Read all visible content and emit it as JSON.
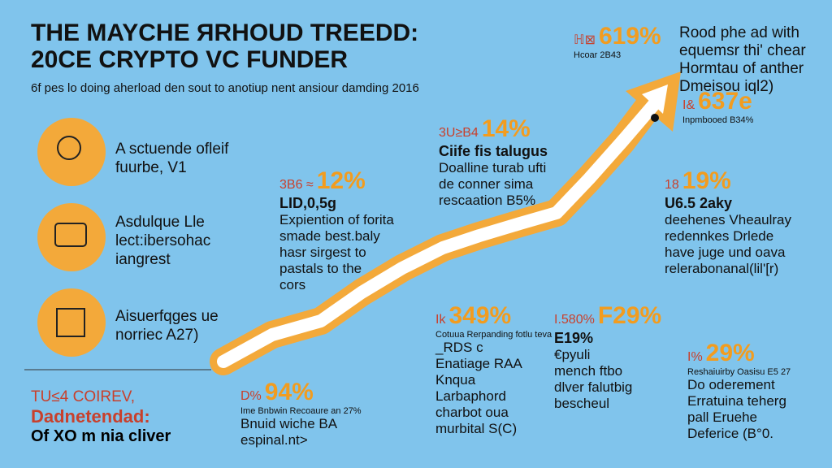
{
  "header": {
    "title": [
      "THE MAYCHE ЯRHOUD TREEDD:",
      "20CE CRYPTO VC FUNDER"
    ],
    "subtitle": "6f pes lo doing aherload den sout to anotiup nent ansiour damding 2016"
  },
  "features": [
    {
      "text": [
        "A sctuende ofleif",
        "fuurbe, V1"
      ]
    },
    {
      "text": [
        "Asdulque Lle",
        "lect:ibersohac",
        "iangrest"
      ]
    },
    {
      "text": [
        "Aisuerfqges ue",
        "norriec A27)"
      ]
    }
  ],
  "footer_left": {
    "tag": "TU≤4 COIREV,",
    "headline": "Dadnetendad:",
    "line": "Of XO m nia cliver"
  },
  "note_top_right": [
    "Rood phe ad with",
    "equemsr thi' chear",
    "Hormtau of anther",
    "Dmeisou iql2)"
  ],
  "callouts": [
    {
      "prefix": "ℍ⊠",
      "stat": "619%",
      "sub": "Hcoar 2B43",
      "lines": []
    },
    {
      "prefix": "I&",
      "stat": "637e",
      "sub": "Inpmbooed B34%",
      "lines": []
    },
    {
      "prefix": "3U≥B4",
      "stat": "14%",
      "sub": "Ciife fis talugus",
      "lines": [
        "Doalline turab ufti",
        "de conner sima",
        "rescaation B5%"
      ]
    },
    {
      "prefix": "3B6 ≈",
      "stat": "12%",
      "sub": "LID,0,5g",
      "lines": [
        "Expiention of forita",
        "smade best.baly",
        "hasr sirgest to",
        "pastals to the",
        "cors"
      ]
    },
    {
      "prefix": "18",
      "stat": "19%",
      "sub": "U6.5 2aky",
      "lines": [
        "deehenes Vheaulray",
        "redennkes Drlede",
        "have juge und oava",
        "relerabonanal(lil'[r)"
      ]
    },
    {
      "prefix": "Ik",
      "stat": "349%",
      "sub": "Cotuua Rerpanding fotlu teva",
      "lines": [
        "_RDS c",
        "Enatiage RAA",
        "Knqua",
        "Larbaphord",
        "charbot oua",
        "murbital S(C)"
      ]
    },
    {
      "prefix": "I.580%",
      "stat": "F29%",
      "sub": "E19%",
      "lines": [
        "€pyuli",
        "mench ftbo",
        "dlver falutbig",
        "bescheul"
      ]
    },
    {
      "prefix": "I%",
      "stat": "29%",
      "sub": "Reshaiuirby Oasisu E5 27",
      "lines": [
        "Do oderement",
        "Erratuina teherg",
        "pall Eruehe",
        "Deferice (B°0."
      ]
    },
    {
      "prefix": "D%",
      "stat": "94%",
      "sub": "Ime Bnbwin Recoaure an 27%",
      "lines": [
        "Bnuid wiche BA",
        "espinal.nt>"
      ]
    }
  ]
}
